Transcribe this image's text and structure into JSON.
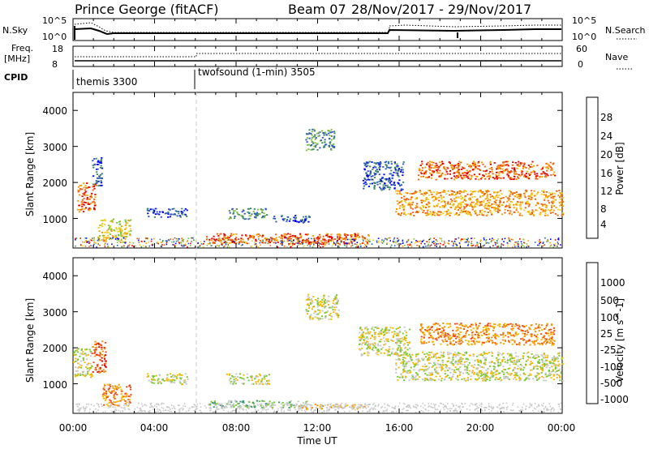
{
  "header": {
    "station": "Prince George (fitACF)",
    "beam": "Beam 07",
    "date_range": "28/Nov/2017 - 29/Nov/2017"
  },
  "ctrl": {
    "nsky_label": "N.Sky",
    "nsky_ticks": [
      "10^5",
      "10^0"
    ],
    "nsearch_label": "N.Search",
    "nsearch_ticks": [
      "10^5",
      "10^0"
    ],
    "freq_label": "Freq.",
    "freq_unit": "[MHz]",
    "freq_ticks": [
      "18",
      "8"
    ],
    "nave_label": "Nave",
    "nave_ticks": [
      "60",
      "0"
    ],
    "cpid_label": "CPID",
    "cpid_segments": [
      {
        "name": "themis 3300",
        "start_hour": 0
      },
      {
        "name": "twofsound (1-min) 3505",
        "start_hour": 6
      }
    ]
  },
  "chart_data": [
    {
      "type": "heatmap",
      "quantity": "Power",
      "ylabel": "Slant Range [km]",
      "ylim": [
        180,
        4500
      ],
      "yticks": [
        "4000",
        "3000",
        "2000",
        "1000"
      ],
      "xlim_hours": [
        0,
        24
      ],
      "colorbar": {
        "label": "Power [dB]",
        "ticks": [
          "28",
          "24",
          "20",
          "16",
          "12",
          "8",
          "4"
        ],
        "colors": [
          "#0000ff",
          "#2d55c8",
          "#3c8a64",
          "#7fbf3f",
          "#f0d020",
          "#f5a000",
          "#f06010",
          "#e80000"
        ]
      },
      "echo_regions": [
        {
          "t": [
            0.2,
            1.1
          ],
          "r": [
            1200,
            2000
          ],
          "level": 6
        },
        {
          "t": [
            0.9,
            1.4
          ],
          "r": [
            1900,
            2700
          ],
          "level": 1
        },
        {
          "t": [
            1.2,
            2.8
          ],
          "r": [
            400,
            1000
          ],
          "level": 4
        },
        {
          "t": [
            3.6,
            5.6
          ],
          "r": [
            1050,
            1300
          ],
          "level": 1
        },
        {
          "t": [
            7.6,
            9.5
          ],
          "r": [
            1000,
            1300
          ],
          "level": 2
        },
        {
          "t": [
            9.8,
            11.6
          ],
          "r": [
            900,
            1100
          ],
          "level": 1
        },
        {
          "t": [
            11.4,
            12.8
          ],
          "r": [
            2900,
            3500
          ],
          "level": 2
        },
        {
          "t": [
            6.5,
            14.5
          ],
          "r": [
            300,
            600
          ],
          "level": 6
        },
        {
          "t": [
            14.2,
            16.2
          ],
          "r": [
            1800,
            2600
          ],
          "level": 1
        },
        {
          "t": [
            15.8,
            24
          ],
          "r": [
            1100,
            1800
          ],
          "level": 5
        },
        {
          "t": [
            16.9,
            23.6
          ],
          "r": [
            2100,
            2600
          ],
          "level": 6
        }
      ]
    },
    {
      "type": "heatmap",
      "quantity": "Velocity",
      "ylabel": "Slant Range [km]",
      "ylim": [
        180,
        4500
      ],
      "yticks": [
        "4000",
        "3000",
        "2000",
        "1000"
      ],
      "xlim_hours": [
        0,
        24
      ],
      "colorbar": {
        "label": "Velocity [m s^-1]",
        "ticks": [
          "1000",
          "500",
          "100",
          "25",
          "-25",
          "-100",
          "-500",
          "-1000"
        ],
        "colors": [
          "#e00000",
          "#f04818",
          "#f08c10",
          "#f5b800",
          "#c8c8c8",
          "#7ac830",
          "#3c9a78",
          "#2d80a0",
          "#1e46c8"
        ]
      },
      "echo_regions": [
        {
          "t": [
            0.0,
            0.9
          ],
          "r": [
            1200,
            2000
          ],
          "level": 4
        },
        {
          "t": [
            0.9,
            1.6
          ],
          "r": [
            1300,
            2200
          ],
          "level": 1
        },
        {
          "t": [
            1.4,
            2.8
          ],
          "r": [
            400,
            1000
          ],
          "level": 2
        },
        {
          "t": [
            3.6,
            5.6
          ],
          "r": [
            1000,
            1300
          ],
          "level": 4
        },
        {
          "t": [
            7.5,
            9.6
          ],
          "r": [
            1000,
            1300
          ],
          "level": 4
        },
        {
          "t": [
            6.6,
            11.6
          ],
          "r": [
            350,
            550
          ],
          "level": 5
        },
        {
          "t": [
            11.0,
            14.5
          ],
          "r": [
            300,
            450
          ],
          "level": 3
        },
        {
          "t": [
            11.4,
            13.0
          ],
          "r": [
            2800,
            3500
          ],
          "level": 4
        },
        {
          "t": [
            14.0,
            16.5
          ],
          "r": [
            1800,
            2600
          ],
          "level": 4
        },
        {
          "t": [
            15.8,
            24
          ],
          "r": [
            1100,
            1900
          ],
          "level": 4
        },
        {
          "t": [
            17.0,
            23.6
          ],
          "r": [
            2100,
            2700
          ],
          "level": 2
        }
      ]
    }
  ],
  "xaxis": {
    "ticks": [
      "00:00",
      "04:00",
      "08:00",
      "12:00",
      "16:00",
      "20:00",
      "00:00"
    ],
    "label": "Time UT"
  }
}
